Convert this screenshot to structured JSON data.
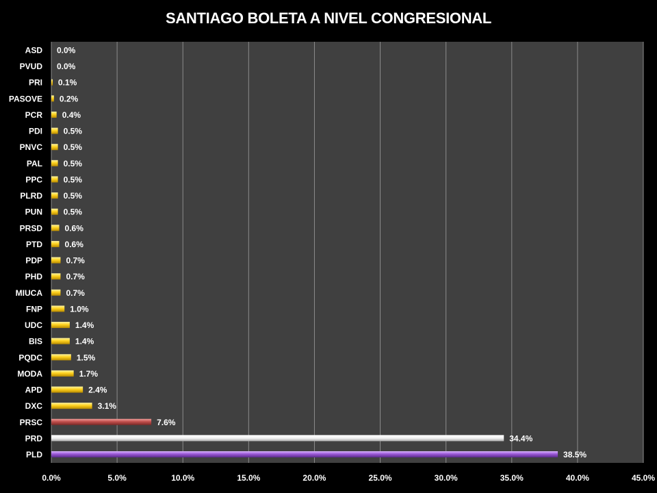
{
  "chart_data": {
    "type": "bar",
    "orientation": "horizontal",
    "title": "SANTIAGO BOLETA A NIVEL CONGRESIONAL",
    "categories": [
      "ASD",
      "PVUD",
      "PRI",
      "PASOVE",
      "PCR",
      "PDI",
      "PNVC",
      "PAL",
      "PPC",
      "PLRD",
      "PUN",
      "PRSD",
      "PTD",
      "PDP",
      "PHD",
      "MIUCA",
      "FNP",
      "UDC",
      "BIS",
      "PQDC",
      "MODA",
      "APD",
      "DXC",
      "PRSC",
      "PRD",
      "PLD"
    ],
    "values": [
      0.0,
      0.0,
      0.1,
      0.2,
      0.4,
      0.5,
      0.5,
      0.5,
      0.5,
      0.5,
      0.5,
      0.6,
      0.6,
      0.7,
      0.7,
      0.7,
      1.0,
      1.4,
      1.4,
      1.5,
      1.7,
      2.4,
      3.1,
      7.6,
      34.4,
      38.5
    ],
    "value_labels": [
      "0.0%",
      "0.0%",
      "0.1%",
      "0.2%",
      "0.4%",
      "0.5%",
      "0.5%",
      "0.5%",
      "0.5%",
      "0.5%",
      "0.5%",
      "0.6%",
      "0.6%",
      "0.7%",
      "0.7%",
      "0.7%",
      "1.0%",
      "1.4%",
      "1.4%",
      "1.5%",
      "1.7%",
      "2.4%",
      "3.1%",
      "7.6%",
      "34.4%",
      "38.5%"
    ],
    "bar_colors": {
      "PRSC": "#c0504d",
      "PRD": "#ffffff",
      "PLD": "#9b59d6",
      "default": "#ffd21f"
    },
    "xlim": [
      0,
      45
    ],
    "xticks": [
      0,
      5,
      10,
      15,
      20,
      25,
      30,
      35,
      40,
      45
    ],
    "xtick_labels": [
      "0.0%",
      "5.0%",
      "10.0%",
      "15.0%",
      "20.0%",
      "25.0%",
      "30.0%",
      "35.0%",
      "40.0%",
      "45.0%"
    ],
    "grid": true,
    "plot_background": "#404040",
    "page_background": "#000000"
  }
}
